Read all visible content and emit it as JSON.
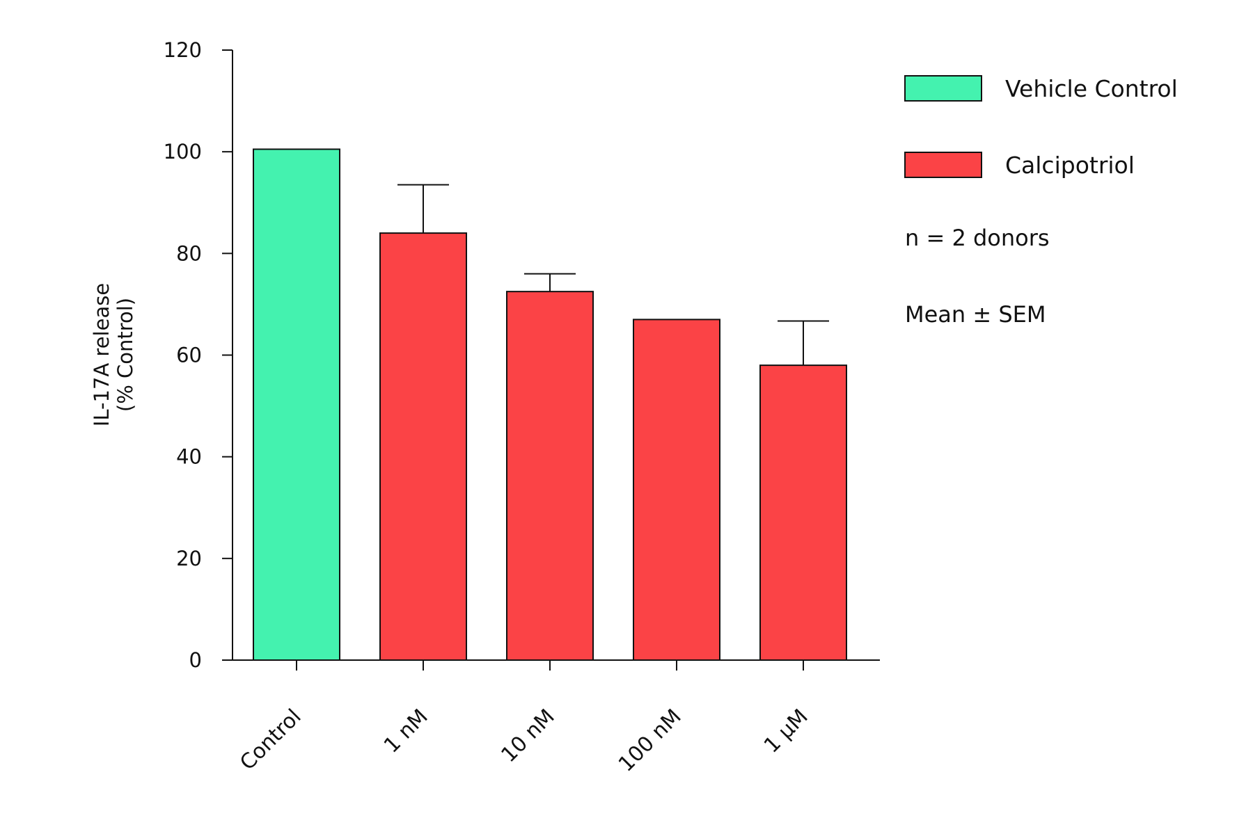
{
  "chart_data": {
    "type": "bar",
    "title": "",
    "xlabel": "",
    "ylabel_lines": [
      "IL-17A release",
      "(% Control)"
    ],
    "ylim": [
      0,
      120
    ],
    "yticks": [
      0,
      20,
      40,
      60,
      80,
      100,
      120
    ],
    "categories": [
      "Control",
      "1 nM",
      "10 nM",
      "100 nM",
      "1 µM"
    ],
    "values": [
      100.5,
      84,
      72.5,
      67,
      58
    ],
    "error_upper": [
      null,
      9.5,
      3.5,
      null,
      8.7
    ],
    "bar_groups": [
      "Vehicle Control",
      "Calcipotriol",
      "Calcipotriol",
      "Calcipotriol",
      "Calcipotriol"
    ],
    "legend": {
      "position": "right",
      "entries": [
        {
          "name": "Vehicle Control",
          "color": "#44F2AF"
        },
        {
          "name": "Calcipotriol",
          "color": "#FB4346"
        }
      ],
      "notes": [
        "n = 2 donors",
        "Mean ± SEM"
      ]
    },
    "grid": false
  }
}
